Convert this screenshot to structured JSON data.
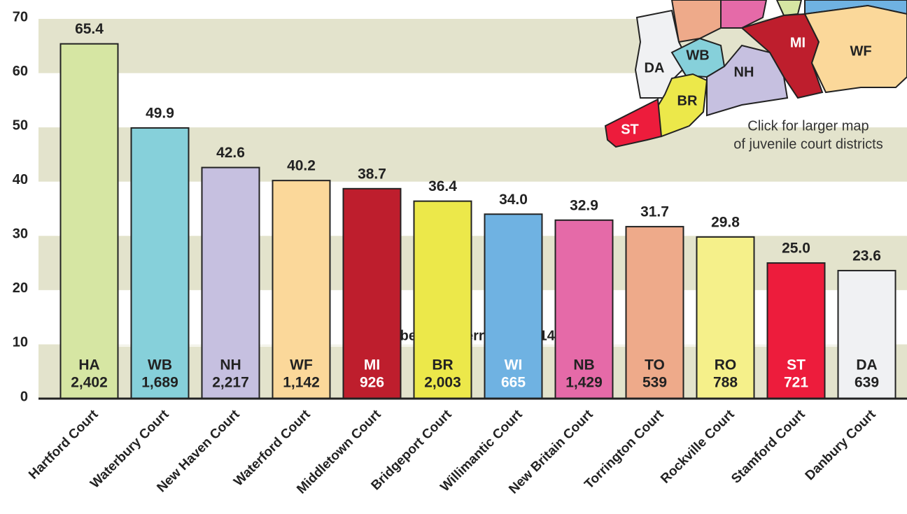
{
  "chart_data": {
    "type": "bar",
    "categories": [
      "Hartford Court",
      "Waterbury Court",
      "New Haven Court",
      "Waterford Court",
      "Middletown Court",
      "Bridgeport Court",
      "Willimantic Court",
      "New Britain Court",
      "Torrington Court",
      "Rockville Court",
      "Stamford Court",
      "Danbury Court"
    ],
    "values": [
      65.4,
      49.9,
      42.6,
      40.2,
      38.7,
      36.4,
      34.0,
      32.9,
      31.7,
      29.8,
      25.0,
      23.6
    ],
    "value_labels": [
      "65.4",
      "49.9",
      "42.6",
      "40.2",
      "38.7",
      "36.4",
      "34.0",
      "32.9",
      "31.7",
      "29.8",
      "25.0",
      "23.6"
    ],
    "colors": [
      "#d6e6a3",
      "#86d0da",
      "#c6c0e0",
      "#fbd89a",
      "#be1e2d",
      "#ece84a",
      "#6fb2e2",
      "#e56aa8",
      "#eeaa8a",
      "#f5f08a",
      "#ed1c3c",
      "#f0f1f3"
    ],
    "codes": [
      "HA",
      "WB",
      "NH",
      "WF",
      "MI",
      "BR",
      "WI",
      "NB",
      "TO",
      "RO",
      "ST",
      "DA"
    ],
    "referrals": [
      "2,402",
      "1,689",
      "2,217",
      "1,142",
      "926",
      "2,003",
      "665",
      "1,429",
      "539",
      "788",
      "721",
      "639"
    ],
    "code_text_colors": [
      "#222",
      "#222",
      "#222",
      "#222",
      "#fff",
      "#222",
      "#fff",
      "#222",
      "#222",
      "#222",
      "#fff",
      "#222"
    ],
    "referrals_caption": "Number of Referrals in 2014",
    "ylim": [
      0,
      70
    ],
    "yticks": [
      0,
      10,
      20,
      30,
      40,
      50,
      60,
      70
    ],
    "banded_background": true
  },
  "map": {
    "regions": [
      "DA",
      "WB",
      "NH",
      "MI",
      "WF",
      "BR",
      "ST"
    ],
    "caption": [
      "Click for larger map",
      "of juvenile court districts"
    ]
  }
}
